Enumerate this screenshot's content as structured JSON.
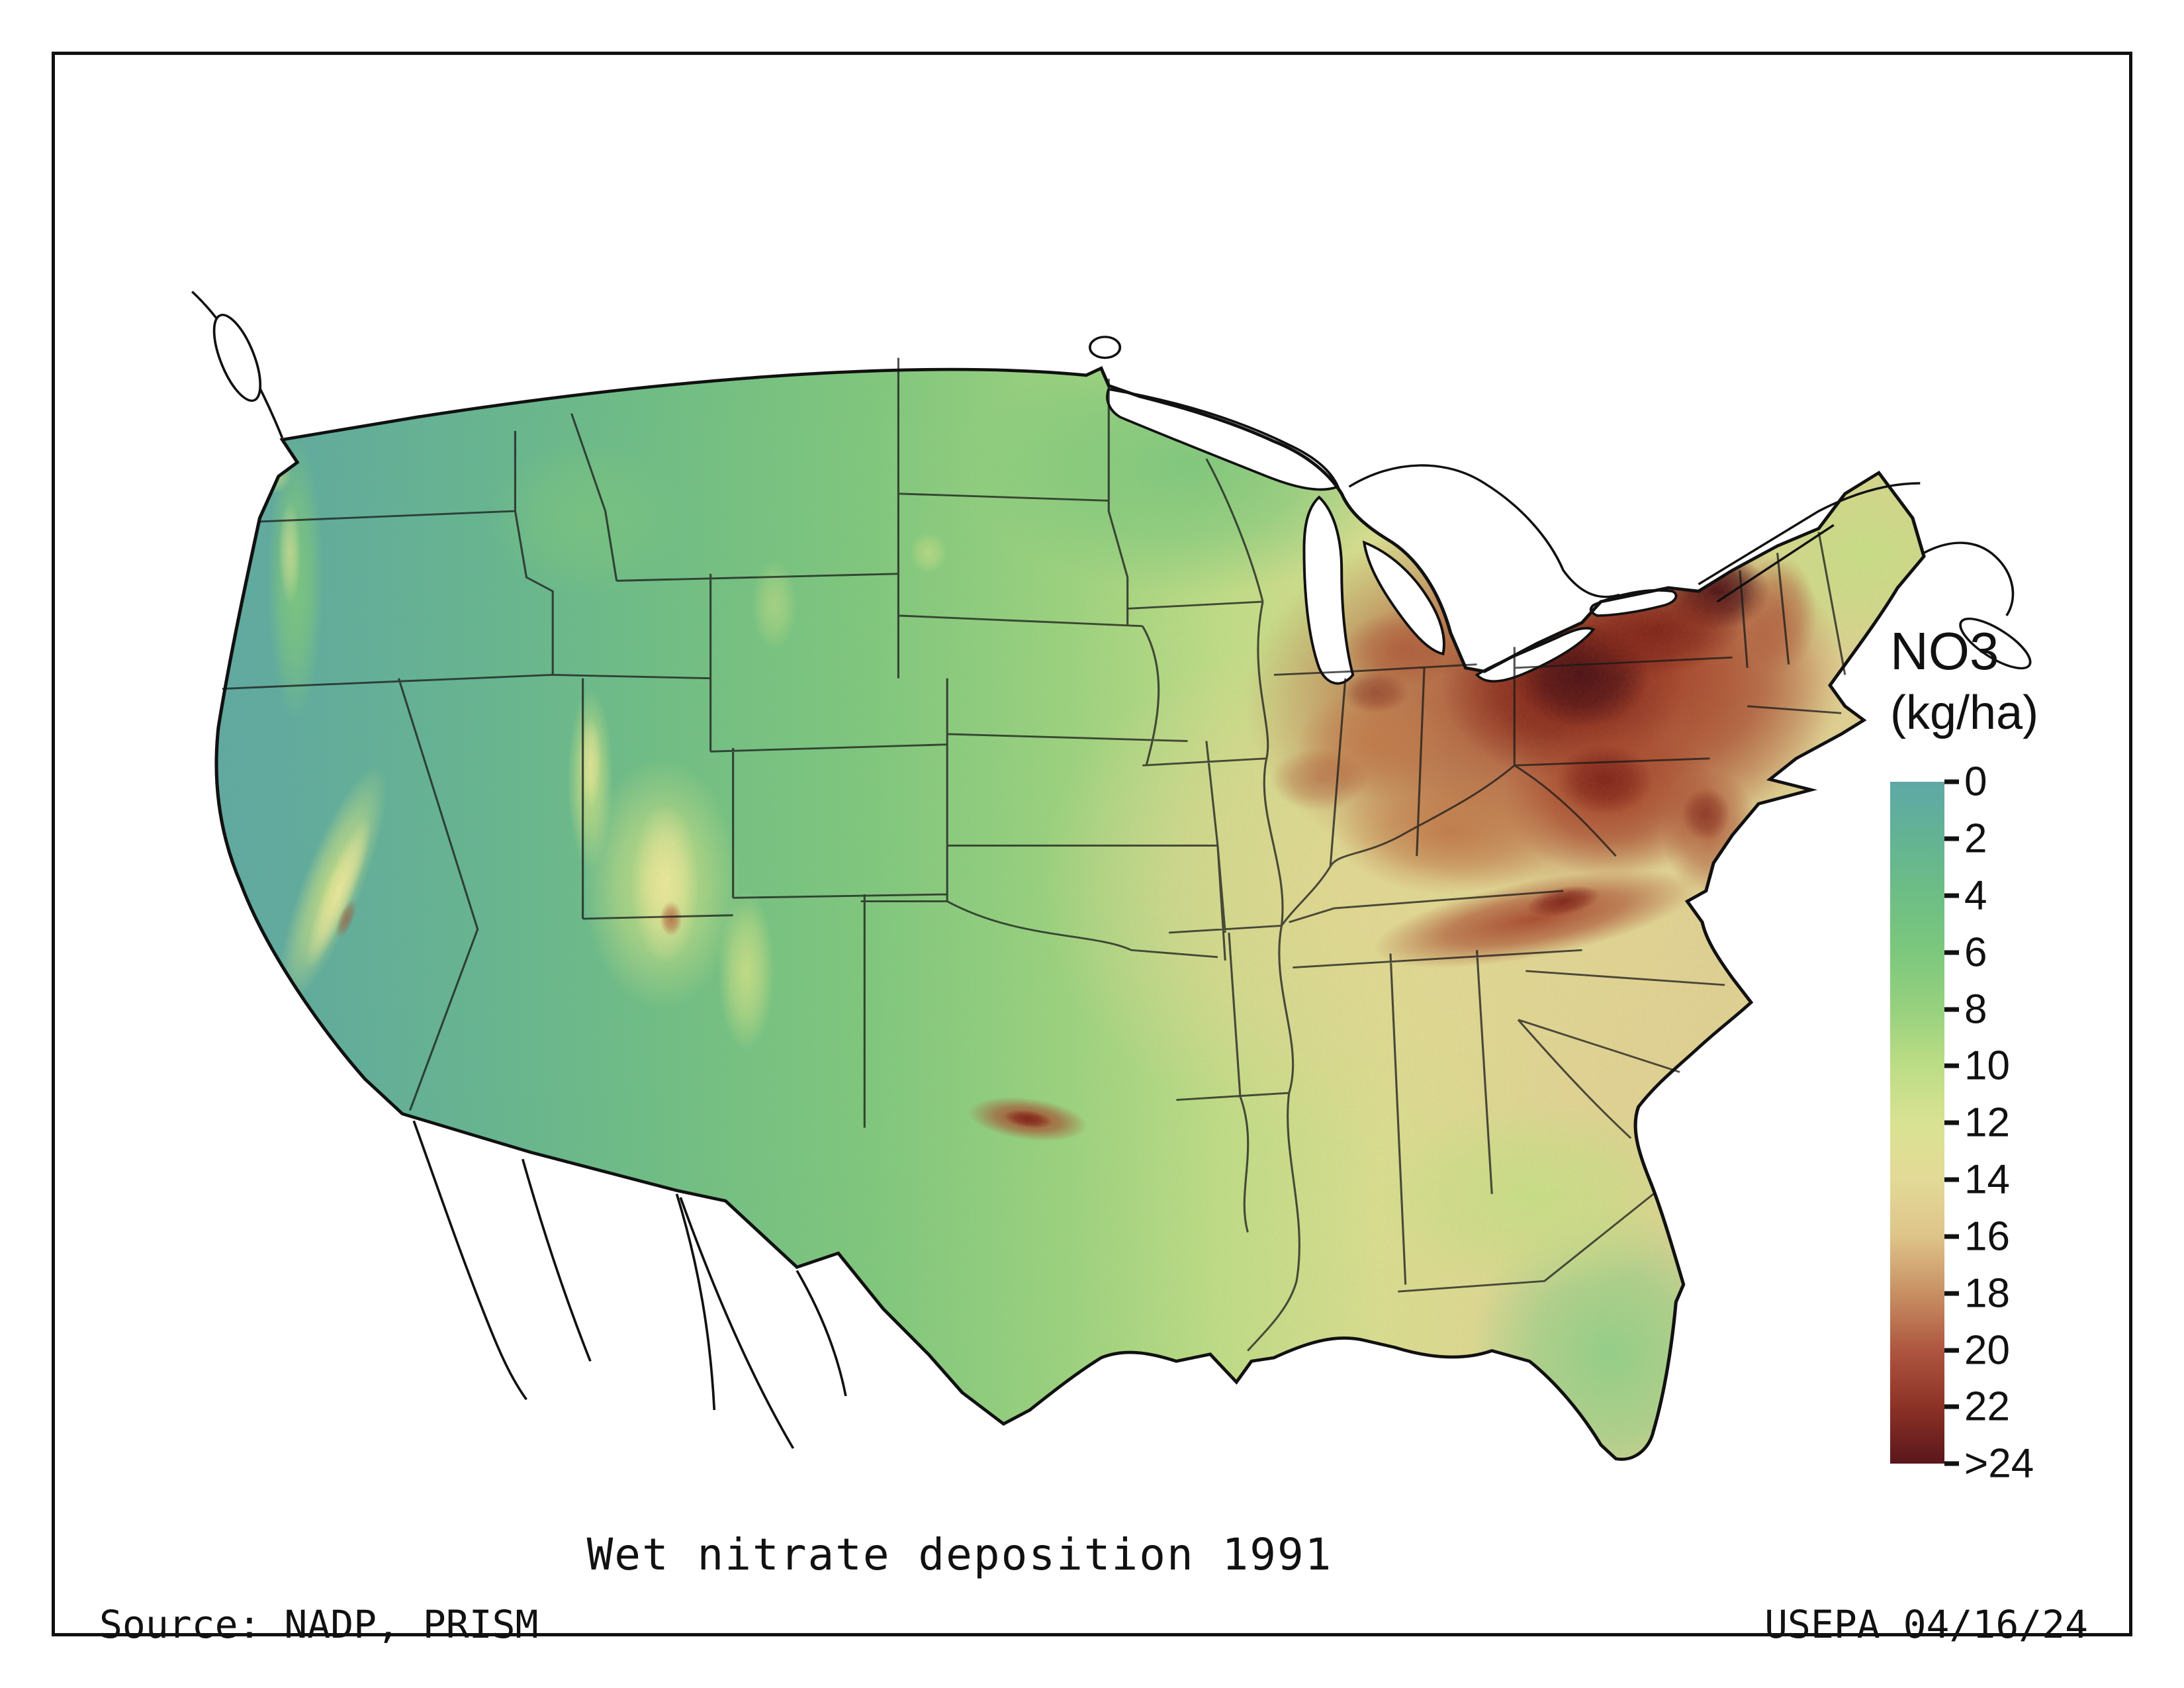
{
  "title": {
    "text": "Wet nitrate deposition 1991"
  },
  "footer": {
    "source": "Source: NADP, PRISM",
    "credit": "USEPA 04/16/24"
  },
  "legend": {
    "title": "NO3",
    "units": "(kg/ha)",
    "ticks": [
      "0",
      "2",
      "4",
      "6",
      "8",
      "10",
      "12",
      "14",
      "16",
      "18",
      "20",
      "22",
      ">24"
    ],
    "colors": [
      "#5FA8A6",
      "#63B394",
      "#6EBE85",
      "#7CC87D",
      "#97D17E",
      "#BCDD85",
      "#D9E292",
      "#E3DA97",
      "#DEC489",
      "#C89063",
      "#AE5640",
      "#8C3226",
      "#5A161B"
    ]
  }
}
